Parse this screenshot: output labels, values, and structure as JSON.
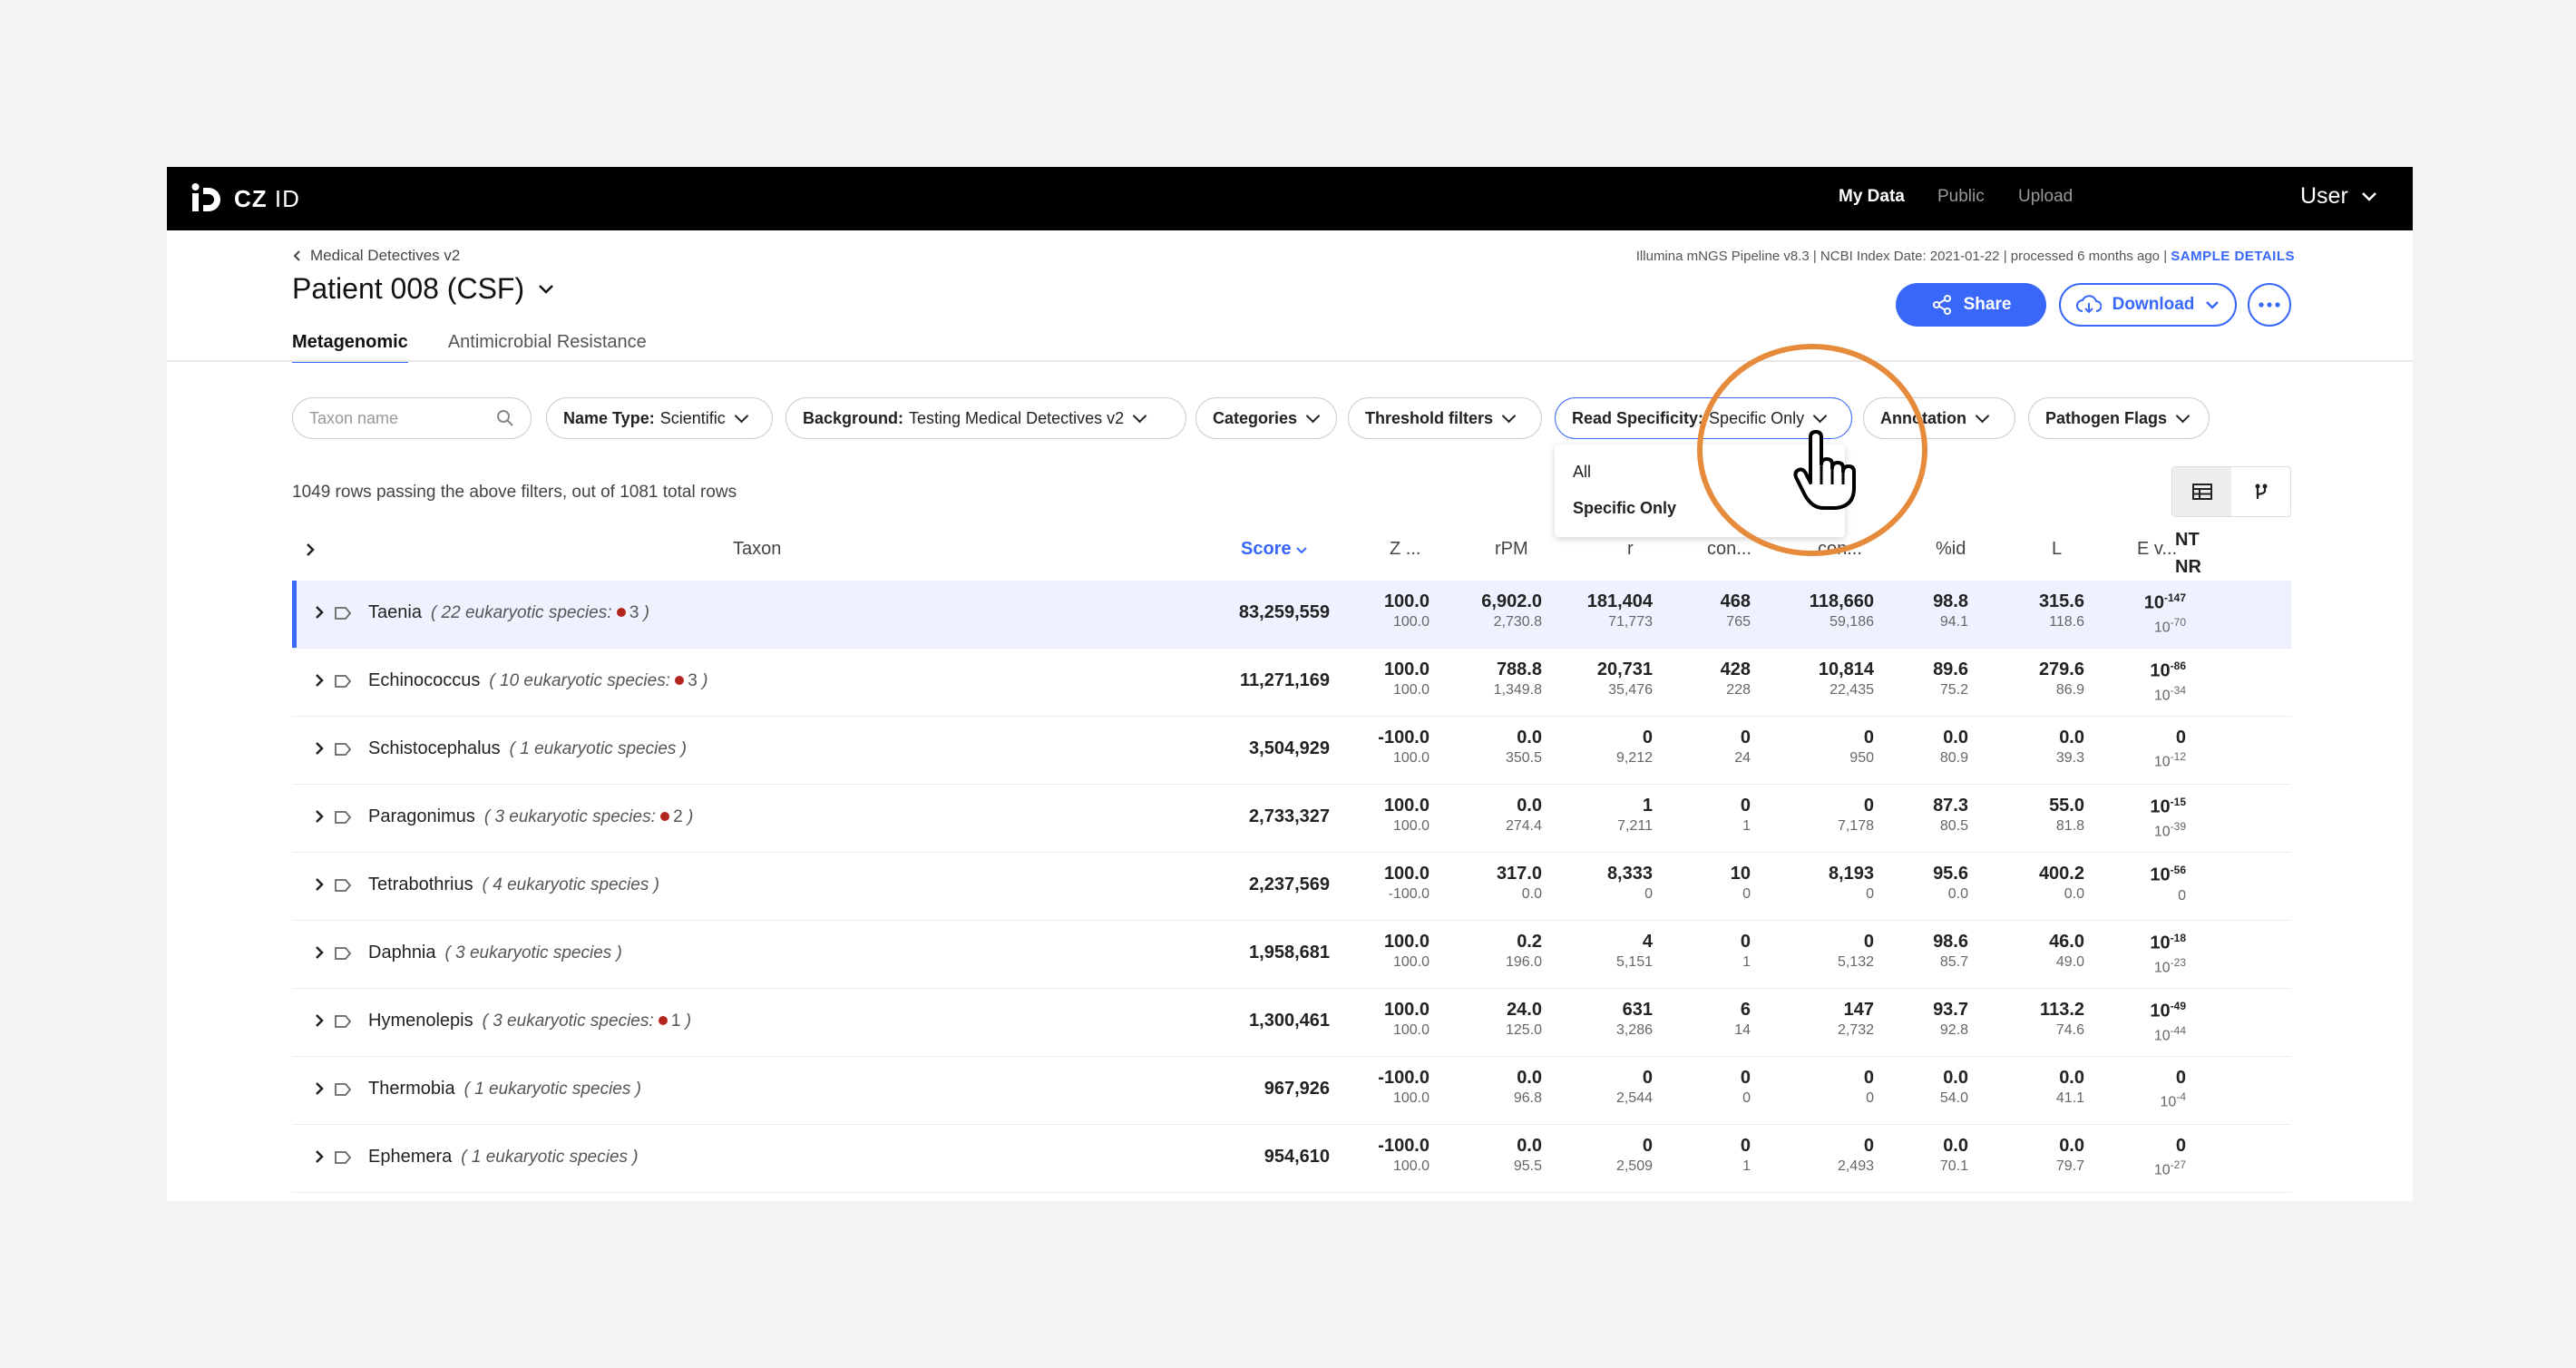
{
  "nav": {
    "logo": "CZ ID",
    "logo_bold": "CZ",
    "logo_light": "ID",
    "links": [
      "My Data",
      "Public",
      "Upload"
    ],
    "user": "User"
  },
  "header": {
    "breadcrumb": "Medical Detectives v2",
    "title": "Patient 008 (CSF)",
    "pipeline_info": "Illumina mNGS Pipeline v8.3 | NCBI Index Date: 2021-01-22 | processed 6 months ago | ",
    "sample_details": "SAMPLE DETAILS",
    "share": "Share",
    "download": "Download"
  },
  "tabs": [
    "Metagenomic",
    "Antimicrobial Resistance"
  ],
  "filters": {
    "search_placeholder": "Taxon name",
    "name_type_label": "Name Type:",
    "name_type_value": "Scientific",
    "background_label": "Background:",
    "background_value": "Testing Medical Detectives v2",
    "categories": "Categories",
    "threshold": "Threshold filters",
    "read_specificity_label": "Read Specificity:",
    "read_specificity_value": "Specific Only",
    "annotation": "Annotation",
    "pathogen_flags": "Pathogen Flags"
  },
  "dropdown": {
    "options": [
      "All",
      "Specific Only"
    ],
    "selected": "Specific Only"
  },
  "row_count": "1049 rows passing the above filters, out of 1081 total rows",
  "columns": {
    "taxon": "Taxon",
    "score": "Score",
    "z": "Z ...",
    "rpm": "rPM",
    "r": "r",
    "con1": "con...",
    "con2": "con...",
    "pid": "%id",
    "l": "L",
    "ev": "E v...",
    "nt": "NT",
    "nr": "NR"
  },
  "rows": [
    {
      "name": "Taenia",
      "sub": "( 22 eukaryotic species:",
      "flag": "3",
      "close": ")",
      "score": "83,259,559",
      "z": [
        "100.0",
        "100.0"
      ],
      "rpm": [
        "6,902.0",
        "2,730.8"
      ],
      "r": [
        "181,404",
        "71,773"
      ],
      "c1": [
        "468",
        "765"
      ],
      "c2": [
        "118,660",
        "59,186"
      ],
      "pid": [
        "98.8",
        "94.1"
      ],
      "l": [
        "315.6",
        "118.6"
      ],
      "ev_nt_exp": "-147",
      "ev_nr_exp": "-70"
    },
    {
      "name": "Echinococcus",
      "sub": "( 10 eukaryotic species:",
      "flag": "3",
      "close": ")",
      "score": "11,271,169",
      "z": [
        "100.0",
        "100.0"
      ],
      "rpm": [
        "788.8",
        "1,349.8"
      ],
      "r": [
        "20,731",
        "35,476"
      ],
      "c1": [
        "428",
        "228"
      ],
      "c2": [
        "10,814",
        "22,435"
      ],
      "pid": [
        "89.6",
        "75.2"
      ],
      "l": [
        "279.6",
        "86.9"
      ],
      "ev_nt_exp": "-86",
      "ev_nr_exp": "-34"
    },
    {
      "name": "Schistocephalus",
      "sub": "( 1 eukaryotic species )",
      "flag": "",
      "close": "",
      "score": "3,504,929",
      "z": [
        "-100.0",
        "100.0"
      ],
      "rpm": [
        "0.0",
        "350.5"
      ],
      "r": [
        "0",
        "9,212"
      ],
      "c1": [
        "0",
        "24"
      ],
      "c2": [
        "0",
        "950"
      ],
      "pid": [
        "0.0",
        "80.9"
      ],
      "l": [
        "0.0",
        "39.3"
      ],
      "ev_nt_exp": "",
      "ev_nr_exp": "-12"
    },
    {
      "name": "Paragonimus",
      "sub": "( 3 eukaryotic species:",
      "flag": "2",
      "close": ")",
      "score": "2,733,327",
      "z": [
        "100.0",
        "100.0"
      ],
      "rpm": [
        "0.0",
        "274.4"
      ],
      "r": [
        "1",
        "7,211"
      ],
      "c1": [
        "0",
        "1"
      ],
      "c2": [
        "0",
        "7,178"
      ],
      "pid": [
        "87.3",
        "80.5"
      ],
      "l": [
        "55.0",
        "81.8"
      ],
      "ev_nt_exp": "-15",
      "ev_nr_exp": "-39"
    },
    {
      "name": "Tetrabothrius",
      "sub": "( 4 eukaryotic species )",
      "flag": "",
      "close": "",
      "score": "2,237,569",
      "z": [
        "100.0",
        "-100.0"
      ],
      "rpm": [
        "317.0",
        "0.0"
      ],
      "r": [
        "8,333",
        "0"
      ],
      "c1": [
        "10",
        "0"
      ],
      "c2": [
        "8,193",
        "0"
      ],
      "pid": [
        "95.6",
        "0.0"
      ],
      "l": [
        "400.2",
        "0.0"
      ],
      "ev_nt_exp": "-56",
      "ev_nr_exp": ""
    },
    {
      "name": "Daphnia",
      "sub": "( 3 eukaryotic species )",
      "flag": "",
      "close": "",
      "score": "1,958,681",
      "z": [
        "100.0",
        "100.0"
      ],
      "rpm": [
        "0.2",
        "196.0"
      ],
      "r": [
        "4",
        "5,151"
      ],
      "c1": [
        "0",
        "1"
      ],
      "c2": [
        "0",
        "5,132"
      ],
      "pid": [
        "98.6",
        "85.7"
      ],
      "l": [
        "46.0",
        "49.0"
      ],
      "ev_nt_exp": "-18",
      "ev_nr_exp": "-23"
    },
    {
      "name": "Hymenolepis",
      "sub": "( 3 eukaryotic species:",
      "flag": "1",
      "close": ")",
      "score": "1,300,461",
      "z": [
        "100.0",
        "100.0"
      ],
      "rpm": [
        "24.0",
        "125.0"
      ],
      "r": [
        "631",
        "3,286"
      ],
      "c1": [
        "6",
        "14"
      ],
      "c2": [
        "147",
        "2,732"
      ],
      "pid": [
        "93.7",
        "92.8"
      ],
      "l": [
        "113.2",
        "74.6"
      ],
      "ev_nt_exp": "-49",
      "ev_nr_exp": "-44"
    },
    {
      "name": "Thermobia",
      "sub": "( 1 eukaryotic species )",
      "flag": "",
      "close": "",
      "score": "967,926",
      "z": [
        "-100.0",
        "100.0"
      ],
      "rpm": [
        "0.0",
        "96.8"
      ],
      "r": [
        "0",
        "2,544"
      ],
      "c1": [
        "0",
        "0"
      ],
      "c2": [
        "0",
        "0"
      ],
      "pid": [
        "0.0",
        "54.0"
      ],
      "l": [
        "0.0",
        "41.1"
      ],
      "ev_nt_exp": "",
      "ev_nr_exp": "-4"
    },
    {
      "name": "Ephemera",
      "sub": "( 1 eukaryotic species )",
      "flag": "",
      "close": "",
      "score": "954,610",
      "z": [
        "-100.0",
        "100.0"
      ],
      "rpm": [
        "0.0",
        "95.5"
      ],
      "r": [
        "0",
        "2,509"
      ],
      "c1": [
        "0",
        "1"
      ],
      "c2": [
        "0",
        "2,493"
      ],
      "pid": [
        "0.0",
        "70.1"
      ],
      "l": [
        "0.0",
        "79.7"
      ],
      "ev_nt_exp": "",
      "ev_nr_exp": "-27"
    }
  ],
  "colors": {
    "accent": "#3867fa",
    "flag": "#b3261e",
    "highlight_circle": "#e68a3c"
  }
}
